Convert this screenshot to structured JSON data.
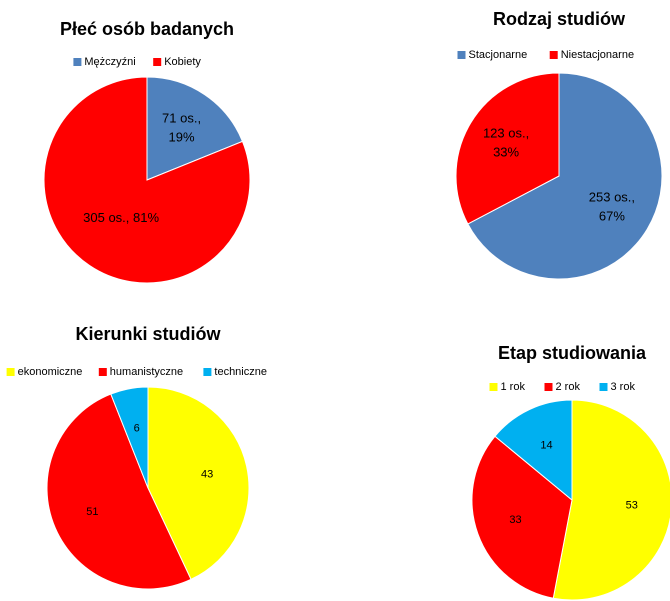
{
  "chart_data": [
    {
      "type": "pie",
      "title": "Płeć osób badanych",
      "categories": [
        "Mężczyźni",
        "Kobiety"
      ],
      "values": [
        71,
        305
      ],
      "value_labels": [
        "71 os., 19%",
        "305 os., 81%"
      ],
      "colors": [
        "#4f81bd",
        "#ff0000"
      ]
    },
    {
      "type": "pie",
      "title": "Rodzaj studiów",
      "categories": [
        "Stacjonarne",
        "Niestacjonarne"
      ],
      "values": [
        253,
        123
      ],
      "value_labels": [
        "253 os., 67%",
        "123 os., 33%"
      ],
      "colors": [
        "#4f81bd",
        "#ff0000"
      ]
    },
    {
      "type": "pie",
      "title": "Kierunki studiów",
      "categories": [
        "ekonomiczne",
        "humanistyczne",
        "techniczne"
      ],
      "values": [
        43,
        51,
        6
      ],
      "colors": [
        "#ffff00",
        "#ff0000",
        "#00b0f0"
      ]
    },
    {
      "type": "pie",
      "title": "Etap studiowania",
      "categories": [
        "1 rok",
        "2 rok",
        "3 rok"
      ],
      "values": [
        53,
        33,
        14
      ],
      "colors": [
        "#ffff00",
        "#ff0000",
        "#00b0f0"
      ]
    }
  ]
}
